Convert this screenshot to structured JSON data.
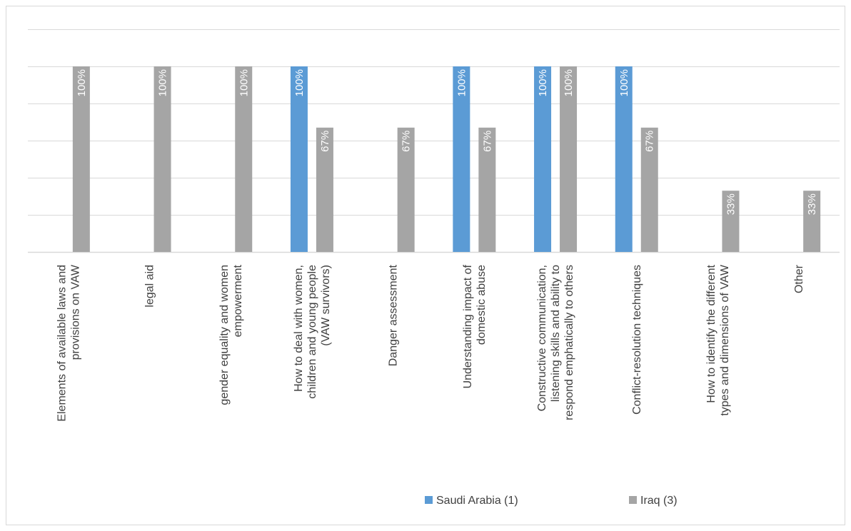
{
  "chart_data": {
    "type": "bar",
    "orientation": "vertical",
    "categories": [
      [
        "Elements of available laws and",
        "provisions on VAW"
      ],
      [
        "legal aid"
      ],
      [
        "gender equality and women",
        "empowerment"
      ],
      [
        "How to deal with women,",
        "children and young people",
        "(VAW survivors)"
      ],
      [
        "Danger assessment"
      ],
      [
        "Understanding impact of",
        "domestic abuse"
      ],
      [
        "Constructive communication,",
        "listening skills and ability to",
        "respond emphatically to others"
      ],
      [
        "Conflict-resolution techniques"
      ],
      [
        "How to identify the different",
        "types and dimensions of VAW"
      ],
      [
        "Other"
      ]
    ],
    "series": [
      {
        "name": "Saudi Arabia (1)",
        "color": "#5b9bd5",
        "values": [
          0,
          0,
          0,
          100,
          0,
          100,
          100,
          100,
          0,
          0
        ],
        "labels": [
          "",
          "",
          "",
          "100%",
          "",
          "100%",
          "100%",
          "100%",
          "",
          ""
        ]
      },
      {
        "name": "Iraq (3)",
        "color": "#a5a5a5",
        "values": [
          100,
          100,
          100,
          67,
          67,
          67,
          100,
          67,
          33,
          33
        ],
        "labels": [
          "100%",
          "100%",
          "100%",
          "67%",
          "67%",
          "67%",
          "100%",
          "67%",
          "33%",
          "33%"
        ]
      }
    ],
    "ylim": [
      0,
      120
    ],
    "y_gridlines": [
      0,
      20,
      40,
      60,
      80,
      100,
      120
    ],
    "y_tick_labels_visible": false,
    "grid": true,
    "legend_position": "bottom",
    "title": "",
    "xlabel": "",
    "ylabel": ""
  }
}
